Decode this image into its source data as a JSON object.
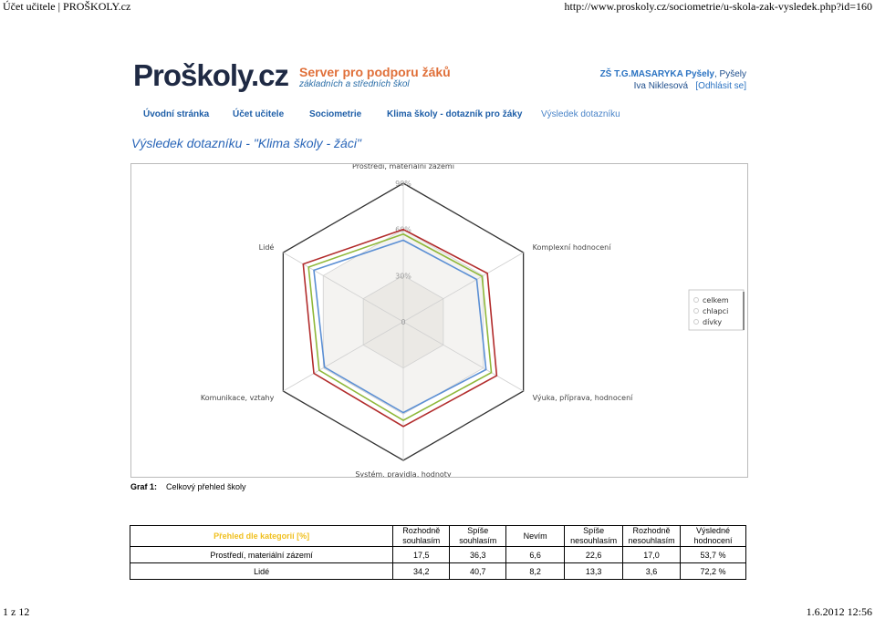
{
  "print_header": {
    "left": "Účet učitele | PROŠKOLY.cz",
    "right": "http://www.proskoly.cz/sociometrie/u-skola-zak-vysledek.php?id=160"
  },
  "print_footer": {
    "left": "1 z 12",
    "right": "1.6.2012 12:56"
  },
  "logo": {
    "text": "Proškoly.cz",
    "tagline1": "Server pro podporu žáků",
    "tagline2": "základních a středních škol"
  },
  "school": {
    "name": "ZŠ T.G.MASARYKA Pyšely",
    "town": ", Pyšely",
    "user": "Iva Niklesová",
    "logout": "[Odhlásit se]"
  },
  "nav": [
    {
      "label": "Úvodní stránka"
    },
    {
      "label": "Účet učitele"
    },
    {
      "label": "Sociometrie"
    },
    {
      "label": "Klima školy - dotazník pro žáky"
    },
    {
      "label": "Výsledek dotazníku"
    }
  ],
  "page_title": "Výsledek dotazníku - \"Klima školy - žáci\"",
  "chart_data": {
    "type": "radar",
    "axes": [
      "Prostředí, materiální zázemí",
      "Komplexní hodnocení",
      "Výuka, příprava, hodnocení",
      "Systém, pravidla, hodnoty",
      "Komunikace, vztahy",
      "Lidé"
    ],
    "ticks": [
      "0",
      "30%",
      "60%",
      "90%"
    ],
    "rlim": [
      0,
      90
    ],
    "series": [
      {
        "name": "celkem",
        "color": "#8fb83a",
        "values": [
          57,
          59,
          66,
          64,
          63,
          71
        ]
      },
      {
        "name": "chlapci",
        "color": "#b22c2c",
        "values": [
          60,
          63,
          70,
          68,
          67,
          75
        ]
      },
      {
        "name": "dívky",
        "color": "#5b8fd4",
        "values": [
          53,
          55,
          62,
          59,
          59,
          67
        ]
      }
    ],
    "legend": "right",
    "grid": true
  },
  "caption": {
    "label": "Graf 1:",
    "text": "Celkový přehled školy"
  },
  "table": {
    "headers": [
      "Přehled dle kategorií [%]",
      "Rozhodně souhlasím",
      "Spíše souhlasím",
      "Nevím",
      "Spíše nesouhlasím",
      "Rozhodně nesouhlasím",
      "Výsledné hodnocení"
    ],
    "rows": [
      [
        "Prostředí, materiální zázemí",
        "17,5",
        "36,3",
        "6,6",
        "22,6",
        "17,0",
        "53,7 %"
      ],
      [
        "Lidé",
        "34,2",
        "40,7",
        "8,2",
        "13,3",
        "3,6",
        "72,2 %"
      ]
    ]
  }
}
